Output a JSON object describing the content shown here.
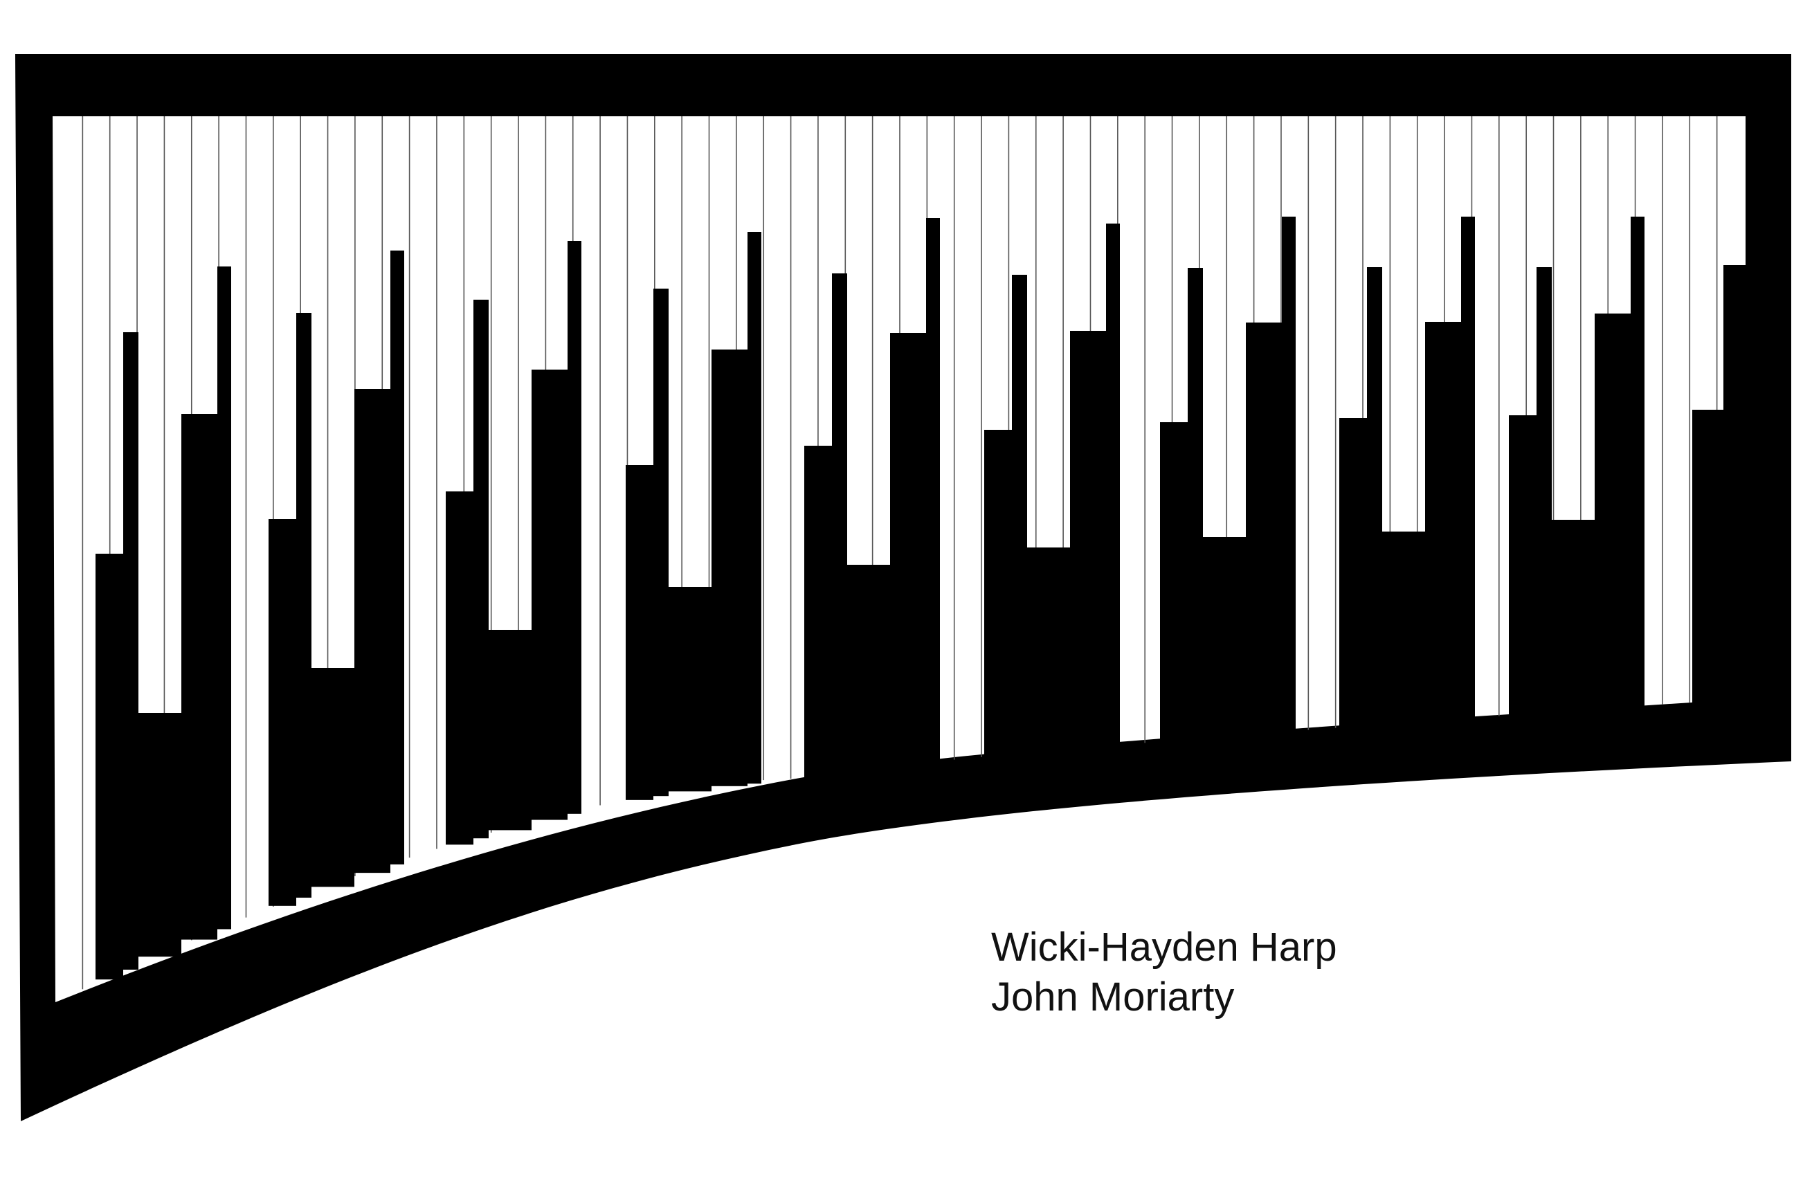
{
  "caption": {
    "title": "Wicki-Hayden Harp",
    "author": "John Moriarty"
  },
  "diagram": {
    "subject": "harp frame with strings and stepped soundboard",
    "colors": {
      "frame": "#000000",
      "background": "#ffffff",
      "string": "#555555"
    }
  }
}
